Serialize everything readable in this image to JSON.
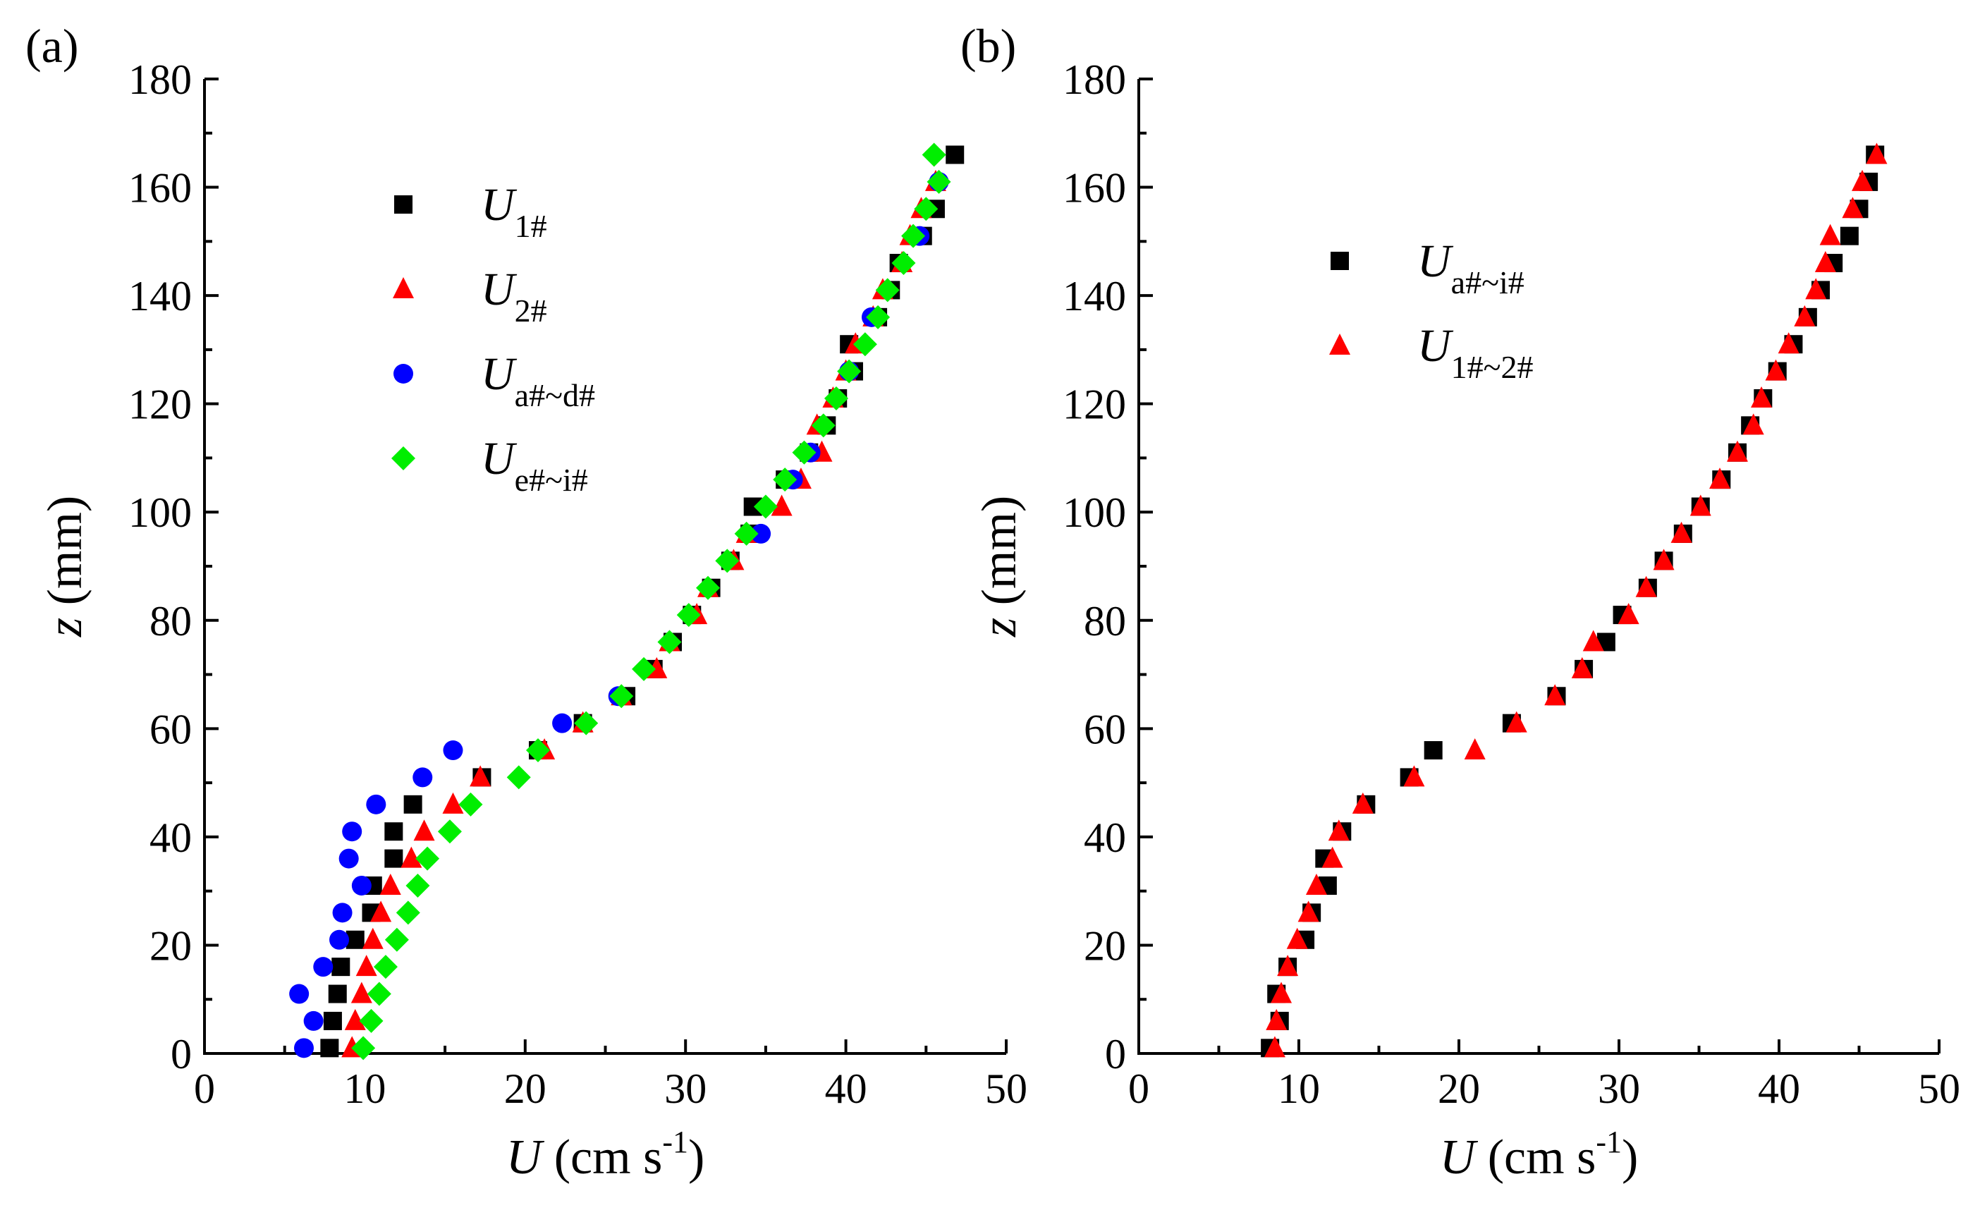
{
  "chart_data": [
    {
      "panel": "(a)",
      "type": "scatter",
      "xlabel": {
        "var": "U",
        "unit_prefix": " (cm s",
        "unit_exp": "-1",
        "unit_suffix": ")"
      },
      "ylabel": {
        "var": "z",
        "unit": " (mm)"
      },
      "xlim": [
        0,
        50
      ],
      "ylim": [
        0,
        180
      ],
      "xticks": [
        0,
        10,
        20,
        30,
        40,
        50
      ],
      "yticks": [
        0,
        20,
        40,
        60,
        80,
        100,
        120,
        140,
        160,
        180
      ],
      "series": [
        {
          "name": "U1#",
          "base": "U",
          "sub": "1#",
          "marker": "square",
          "color": "#000000",
          "x": [
            7.8,
            8.0,
            8.3,
            8.5,
            9.4,
            10.4,
            10.5,
            11.8,
            11.8,
            13.0,
            17.3,
            20.8,
            23.6,
            26.3,
            28.0,
            29.2,
            30.4,
            31.6,
            32.8,
            34.0,
            34.2,
            36.2,
            37.7,
            38.8,
            39.5,
            40.5,
            40.2,
            42.0,
            42.8,
            43.3,
            44.8,
            45.6,
            46.8
          ],
          "y": [
            1,
            6,
            11,
            16,
            21,
            26,
            31,
            36,
            41,
            46,
            51,
            56,
            61,
            66,
            71,
            76,
            81,
            86,
            91,
            96,
            101,
            106,
            111,
            116,
            121,
            126,
            131,
            136,
            141,
            146,
            151,
            156,
            166
          ]
        },
        {
          "name": "U2#",
          "base": "U",
          "sub": "2#",
          "marker": "triangle",
          "color": "#ff0000",
          "x": [
            9.2,
            9.4,
            9.8,
            10.1,
            10.5,
            11.0,
            11.6,
            12.9,
            13.7,
            15.5,
            17.2,
            21.2,
            23.6,
            26.0,
            28.2,
            29.0,
            30.7,
            31.4,
            33.0,
            33.8,
            36.0,
            37.2,
            38.5,
            38.2,
            39.2,
            40.0,
            40.6,
            41.7,
            42.3,
            43.5,
            44.0,
            44.7,
            45.6
          ],
          "y": [
            1,
            6,
            11,
            16,
            21,
            26,
            31,
            36,
            41,
            46,
            51,
            56,
            61,
            66,
            71,
            76,
            81,
            86,
            91,
            96,
            101,
            106,
            111,
            116,
            121,
            126,
            131,
            136,
            141,
            146,
            151,
            156,
            161
          ]
        },
        {
          "name": "Ua#~d#",
          "base": "U",
          "sub": "a#~d#",
          "marker": "circle",
          "color": "#0000ff",
          "x": [
            6.2,
            6.8,
            5.9,
            7.4,
            8.4,
            8.6,
            9.8,
            9.0,
            9.2,
            10.7,
            13.6,
            15.5,
            22.3,
            25.8,
            34.7,
            36.7,
            37.8,
            40.2,
            41.6,
            44.6,
            45.8
          ],
          "y": [
            1,
            6,
            11,
            16,
            21,
            26,
            31,
            36,
            41,
            46,
            51,
            56,
            61,
            66,
            96,
            106,
            111,
            126,
            136,
            151,
            161
          ]
        },
        {
          "name": "Ue#~i#",
          "base": "U",
          "sub": "e#~i#",
          "marker": "diamond",
          "color": "#00ee00",
          "x": [
            9.9,
            10.4,
            10.9,
            11.3,
            12.0,
            12.7,
            13.3,
            13.9,
            15.3,
            16.6,
            19.6,
            20.8,
            23.8,
            26.0,
            27.4,
            29.0,
            30.2,
            31.4,
            32.6,
            33.8,
            35.0,
            36.2,
            37.4,
            38.6,
            39.4,
            40.2,
            41.2,
            42.0,
            42.6,
            43.6,
            44.2,
            45.0,
            45.8,
            45.5
          ],
          "y": [
            1,
            6,
            11,
            16,
            21,
            26,
            31,
            36,
            41,
            46,
            51,
            56,
            61,
            66,
            71,
            76,
            81,
            86,
            91,
            96,
            101,
            106,
            111,
            116,
            121,
            126,
            131,
            136,
            141,
            146,
            151,
            156,
            161,
            166
          ]
        }
      ]
    },
    {
      "panel": "(b)",
      "type": "scatter",
      "xlabel": {
        "var": "U",
        "unit_prefix": " (cm s",
        "unit_exp": "-1",
        "unit_suffix": ")"
      },
      "ylabel": {
        "var": "z",
        "unit": " (mm)"
      },
      "xlim": [
        0,
        50
      ],
      "ylim": [
        0,
        180
      ],
      "xticks": [
        0,
        10,
        20,
        30,
        40,
        50
      ],
      "yticks": [
        0,
        20,
        40,
        60,
        80,
        100,
        120,
        140,
        160,
        180
      ],
      "series": [
        {
          "name": "Ua#~i#",
          "base": "U",
          "sub": "a#~i#",
          "marker": "square",
          "color": "#000000",
          "x": [
            8.2,
            8.8,
            8.6,
            9.3,
            10.4,
            10.8,
            11.8,
            11.6,
            12.7,
            14.2,
            16.9,
            18.4,
            23.3,
            26.1,
            27.8,
            29.2,
            30.2,
            31.8,
            32.8,
            34.0,
            35.1,
            36.4,
            37.4,
            38.2,
            39.0,
            39.9,
            40.9,
            41.8,
            42.6,
            43.4,
            44.4,
            45.0,
            45.6,
            46.0
          ],
          "y": [
            1,
            6,
            11,
            16,
            21,
            26,
            31,
            36,
            41,
            46,
            51,
            56,
            61,
            66,
            71,
            76,
            81,
            86,
            91,
            96,
            101,
            106,
            111,
            116,
            121,
            126,
            131,
            136,
            141,
            146,
            151,
            156,
            161,
            166
          ]
        },
        {
          "name": "U1#~2#",
          "base": "U",
          "sub": "1#~2#",
          "marker": "triangle",
          "color": "#ff0000",
          "x": [
            8.5,
            8.6,
            8.9,
            9.3,
            9.9,
            10.6,
            11.1,
            12.1,
            12.5,
            14.0,
            17.2,
            21.0,
            23.6,
            26.0,
            27.7,
            28.4,
            30.6,
            31.7,
            32.8,
            33.9,
            35.1,
            36.3,
            37.4,
            38.4,
            38.9,
            39.8,
            40.6,
            41.6,
            42.3,
            42.9,
            43.2,
            44.6,
            45.2,
            46.1
          ],
          "y": [
            1,
            6,
            11,
            16,
            21,
            26,
            31,
            36,
            41,
            46,
            51,
            56,
            61,
            66,
            71,
            76,
            81,
            86,
            91,
            96,
            101,
            106,
            111,
            116,
            121,
            126,
            131,
            136,
            141,
            146,
            151,
            156,
            161,
            166
          ]
        }
      ]
    }
  ]
}
